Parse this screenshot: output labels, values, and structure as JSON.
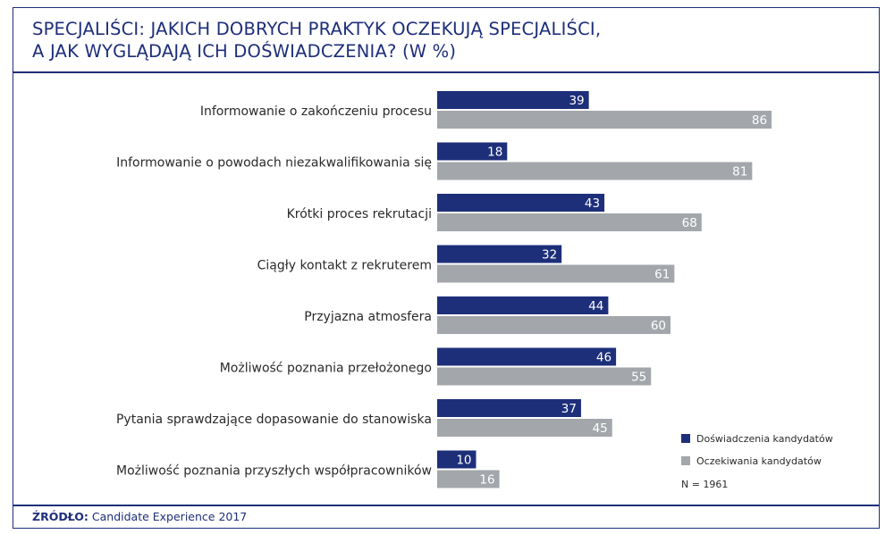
{
  "title_lines": [
    "SPECJALIŚCI: JAKICH DOBRYCH PRAKTYK OCZEKUJĄ SPECJALIŚCI,",
    "A JAK WYGLĄDAJĄ ICH DOŚWIADCZENIA? (W %)"
  ],
  "source": {
    "label": "ŹRÓDŁO:",
    "text": " Candidate Experience 2017"
  },
  "colors": {
    "accent": "#1e2f7a",
    "experience": "#1e2f7a",
    "expectation": "#a3a7ab"
  },
  "chart_data": {
    "type": "bar",
    "orientation": "horizontal",
    "title": "SPECJALIŚCI: JAKICH DOBRYCH PRAKTYK OCZEKUJĄ SPECJALIŚCI, A JAK WYGLĄDAJĄ ICH DOŚWIADCZENIA? (W %)",
    "categories": [
      "Informowanie o zakończeniu procesu",
      "Informowanie o powodach niezakwalifikowania się",
      "Krótki proces rekrutacji",
      "Ciągły kontakt z rekruterem",
      "Przyjazna atmosfera",
      "Możliwość poznania przełożonego",
      "Pytania sprawdzające dopasowanie do stanowiska",
      "Możliwość poznania przyszłych współpracowników"
    ],
    "series": [
      {
        "name": "Doświadczenia kandydatów",
        "color": "#1e2f7a",
        "values": [
          39,
          18,
          43,
          32,
          44,
          46,
          37,
          10
        ]
      },
      {
        "name": "Oczekiwania kandydatów",
        "color": "#a3a7ab",
        "values": [
          86,
          81,
          68,
          61,
          60,
          55,
          45,
          16
        ]
      }
    ],
    "xlim": [
      0,
      100
    ],
    "grid": false,
    "legend": "bottom-right",
    "note": "N = 1961"
  }
}
